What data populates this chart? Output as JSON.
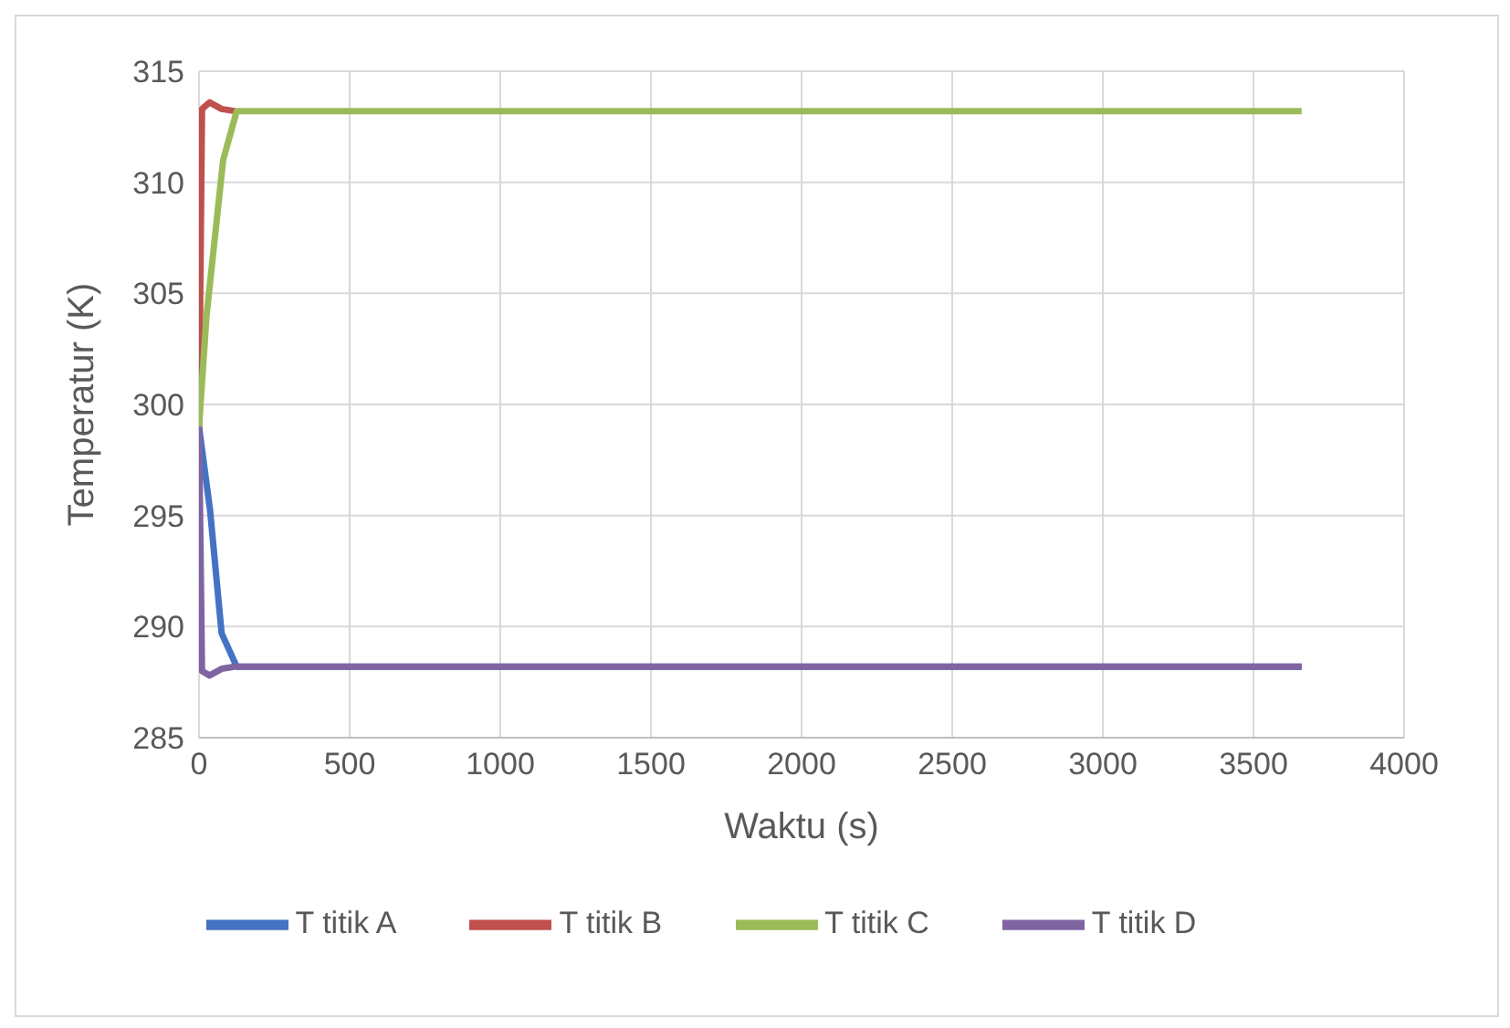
{
  "chart_data": {
    "type": "line",
    "xlabel": "Waktu (s)",
    "ylabel": "Temperatur (K)",
    "xlim": [
      0,
      4000
    ],
    "xticks": [
      0,
      500,
      1000,
      1500,
      2000,
      2500,
      3000,
      3500,
      4000
    ],
    "ylim": [
      285,
      315
    ],
    "yticks": [
      285,
      290,
      295,
      300,
      305,
      310,
      315
    ],
    "grid": true,
    "legend": "bottom",
    "marker": "none",
    "line_style": "solid",
    "series": [
      {
        "name": "T titik A",
        "color": "#4472c4",
        "x": [
          0,
          37,
          75,
          125,
          200,
          3660
        ],
        "values": [
          299,
          295.2,
          289.7,
          288.2,
          288.2,
          288.2
        ]
      },
      {
        "name": "T titik B",
        "color": "#c0504d",
        "x": [
          0,
          10,
          35,
          75,
          120
        ],
        "values": [
          299,
          313.3,
          313.6,
          313.3,
          313.2
        ]
      },
      {
        "name": "T titik C",
        "color": "#9bbb59",
        "x": [
          0,
          25,
          80,
          125,
          200,
          3660
        ],
        "values": [
          299,
          304,
          311,
          313.2,
          313.2,
          313.2
        ]
      },
      {
        "name": "T titik D",
        "color": "#8064a2",
        "x": [
          0,
          10,
          35,
          75,
          120,
          200,
          3660
        ],
        "values": [
          299,
          288,
          287.8,
          288.1,
          288.2,
          288.2,
          288.2
        ]
      }
    ]
  }
}
